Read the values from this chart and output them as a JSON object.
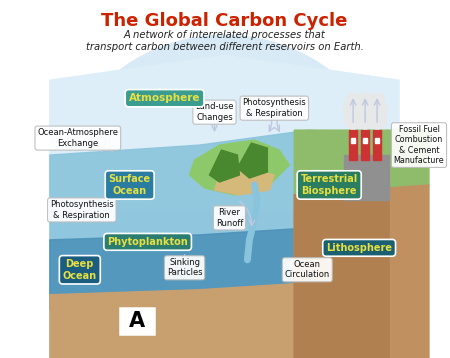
{
  "title": "The Global Carbon Cycle",
  "subtitle1": "A network of interrelated processes that",
  "subtitle2": "transport carbon between different reservoirs on Earth.",
  "title_color": "#cc2200",
  "subtitle_color": "#222222",
  "bg_color": "#ffffff",
  "circle_color": "#d8eaf5",
  "sky_color": "#ddeef8",
  "ocean_upper_color": "#8ac4dc",
  "ocean_mid_color": "#6aaec8",
  "ocean_deep_color": "#4a90b8",
  "cliff_top_color": "#8fbc6a",
  "cliff_side_color": "#b08050",
  "cliff_face_color": "#c09060",
  "ground_bottom_color": "#c8a070",
  "island_green": "#7ab855",
  "island_dark": "#4a8830",
  "river_color": "#8ac4dc",
  "atm_badge": {
    "bg": "#3a9d8f",
    "text": "#e8e040"
  },
  "surface_badge": {
    "bg": "#2a7da0",
    "text": "#e8e040"
  },
  "phyto_badge": {
    "bg": "#2a7d70",
    "text": "#e8e040"
  },
  "deep_badge": {
    "bg": "#1a5d80",
    "text": "#e8e040"
  },
  "terrestrial_badge": {
    "bg": "#2a7d60",
    "text": "#e8e040"
  },
  "lithosphere_badge": {
    "bg": "#1a6070",
    "text": "#e8e040"
  },
  "annot_bg": "#ffffff",
  "annot_edge": "#cccccc",
  "arrow_color": "#b0b8d0",
  "factory_body": "#909090",
  "stack_color": "#cc3333",
  "smoke_color": "#e8e8e8"
}
